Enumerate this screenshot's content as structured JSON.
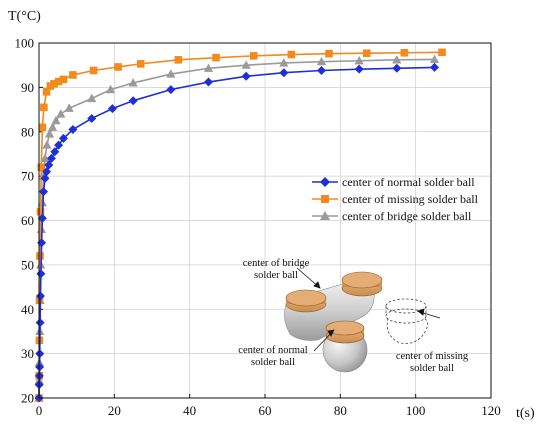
{
  "chart_data": {
    "type": "line",
    "xlabel": "t(s)",
    "ylabel": "T(°C)",
    "xlim": [
      0,
      120
    ],
    "ylim": [
      20,
      100
    ],
    "xticks": [
      "0",
      "20",
      "40",
      "60",
      "80",
      "100",
      "120"
    ],
    "yticks": [
      "20",
      "30",
      "40",
      "50",
      "60",
      "70",
      "80",
      "90",
      "100"
    ],
    "grid": true,
    "legend_position": "middle-right",
    "series": [
      {
        "name": "center of normal solder ball",
        "color": "#1f2fd6",
        "marker": "diamond",
        "x": [
          0,
          0.05,
          0.1,
          0.15,
          0.2,
          0.3,
          0.4,
          0.5,
          0.7,
          0.9,
          1.2,
          1.6,
          2,
          2.6,
          3.3,
          4.2,
          5.2,
          6.5,
          9,
          14,
          19.5,
          25,
          35,
          45,
          55,
          65,
          75,
          85,
          95,
          105
        ],
        "y": [
          20,
          23,
          25,
          27,
          30,
          37,
          43,
          48,
          55,
          60.5,
          66.5,
          69.5,
          71,
          72.5,
          74,
          75.5,
          77,
          78.5,
          80.5,
          83,
          85.2,
          87,
          89.5,
          91.2,
          92.5,
          93.3,
          93.8,
          94.1,
          94.3,
          94.5
        ]
      },
      {
        "name": "center of missing solder ball",
        "color": "#f28a1e",
        "marker": "square",
        "x": [
          0,
          0.05,
          0.1,
          0.15,
          0.25,
          0.4,
          0.6,
          0.9,
          1.3,
          2,
          3,
          4,
          5.2,
          6.5,
          9,
          14.5,
          21,
          27,
          37,
          47,
          57,
          67,
          77,
          87,
          97,
          107
        ],
        "y": [
          20,
          25,
          33,
          42,
          52,
          62,
          72,
          81,
          85.5,
          89,
          90.3,
          90.8,
          91.3,
          91.8,
          92.8,
          93.8,
          94.6,
          95.3,
          96.2,
          96.7,
          97.1,
          97.4,
          97.6,
          97.7,
          97.8,
          97.9
        ]
      },
      {
        "name": "center of bridge solder ball",
        "color": "#9a9a9a",
        "marker": "triangle",
        "x": [
          0,
          0.05,
          0.1,
          0.2,
          0.3,
          0.45,
          0.65,
          0.9,
          1.2,
          1.6,
          2.1,
          2.8,
          3.6,
          4.5,
          5.8,
          8,
          14,
          19,
          25,
          35,
          45,
          55,
          65,
          75,
          85,
          95,
          105
        ],
        "y": [
          20,
          24,
          28,
          35,
          42,
          50,
          58,
          64,
          70,
          74,
          77,
          79.5,
          81,
          82.5,
          84,
          85.3,
          87.5,
          89.5,
          91,
          93,
          94.3,
          95,
          95.5,
          95.8,
          96,
          96.2,
          96.3
        ]
      }
    ],
    "annotations": {
      "bridge": [
        "center of bridge",
        "solder ball"
      ],
      "normal": [
        "center of normal",
        "solder ball"
      ],
      "missing": [
        "center of missing",
        "solder ball"
      ]
    }
  },
  "colors": {
    "normal_line": "#1f2fd6",
    "missing_line": "#f28a1e",
    "bridge_line": "#9a9a9a",
    "pad_copper": "#d9a066",
    "ball_silver": "#c9c9c9"
  }
}
